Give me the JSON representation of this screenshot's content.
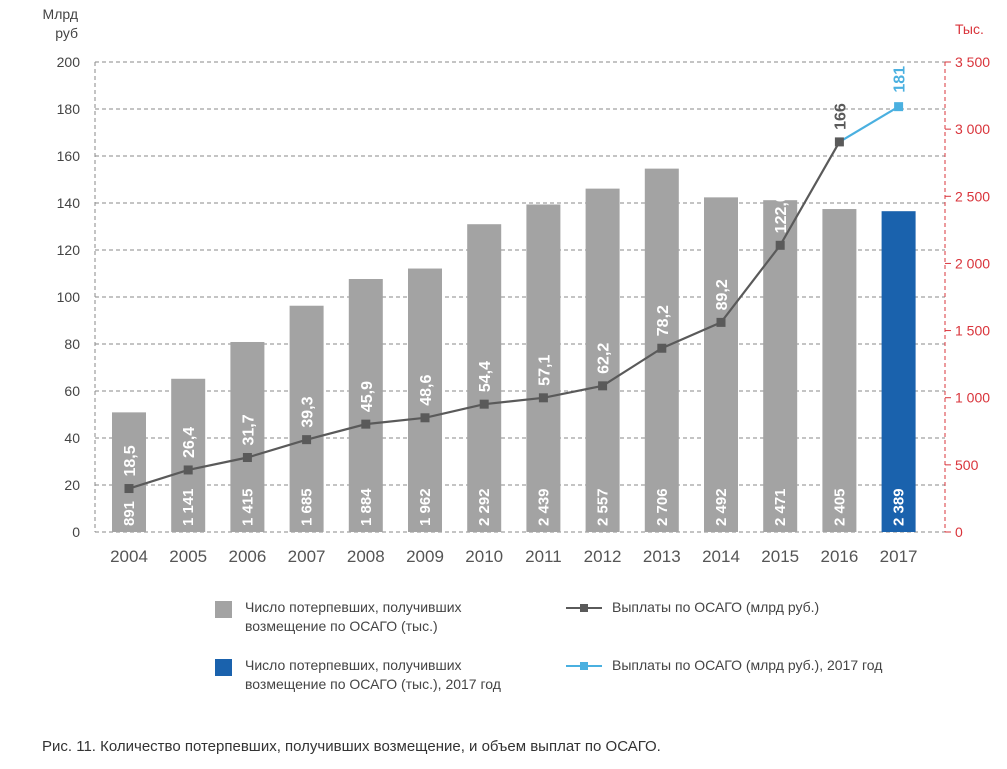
{
  "chart_data": {
    "type": "bar+line",
    "title": "",
    "left_axis_label": [
      "Млрд",
      "руб"
    ],
    "right_axis_label": "Тыс.",
    "categories": [
      "2004",
      "2005",
      "2006",
      "2007",
      "2008",
      "2009",
      "2010",
      "2011",
      "2012",
      "2013",
      "2014",
      "2015",
      "2016",
      "2017"
    ],
    "ylim_left": [
      0,
      200
    ],
    "yticks_left": [
      0,
      20,
      40,
      60,
      80,
      100,
      120,
      140,
      160,
      180,
      200
    ],
    "ylim_right": [
      0,
      3500
    ],
    "yticks_right": [
      0,
      500,
      1000,
      1500,
      2000,
      2500,
      3000,
      3500
    ],
    "yticks_right_labels": [
      "0",
      "500",
      "1 000",
      "1 500",
      "2 000",
      "2 500",
      "3 000",
      "3 500"
    ],
    "grid": true,
    "bars": {
      "axis": "right",
      "values": [
        891,
        1141,
        1415,
        1685,
        1884,
        1962,
        2292,
        2439,
        2557,
        2706,
        2492,
        2471,
        2405,
        2389
      ],
      "labels": [
        "891",
        "1 141",
        "1 415",
        "1 685",
        "1 884",
        "1 962",
        "2 292",
        "2 439",
        "2 557",
        "2 706",
        "2 492",
        "2 471",
        "2 405",
        "2 389"
      ],
      "color": "#a3a3a3",
      "highlight_index": 13,
      "highlight_color": "#1a62ad"
    },
    "line": {
      "axis": "left",
      "values": [
        18.5,
        26.4,
        31.7,
        39.3,
        45.9,
        48.6,
        54.4,
        57.1,
        62.2,
        78.2,
        89.2,
        122.0,
        166
      ],
      "labels": [
        "18,5",
        "26,4",
        "31,7",
        "39,3",
        "45,9",
        "48,6",
        "54,4",
        "57,1",
        "62,2",
        "78,2",
        "89,2",
        "122,0",
        "166"
      ],
      "color": "#5a5a5a"
    },
    "line_2017": {
      "axis": "left",
      "from_index": 12,
      "values": [
        166,
        181
      ],
      "label": "181",
      "color": "#4ab0e0"
    },
    "right_axis_color": "#d9343b",
    "left_axis_color": "#444444"
  },
  "legend": {
    "items": [
      {
        "text": "Число потерпевших, получивших возмещение по ОСАГО (тыс.)",
        "color": "#a3a3a3"
      },
      {
        "text": "Выплаты по ОСАГО (млрд руб.)",
        "color": "#5a5a5a"
      },
      {
        "text": "Число потерпевших, получивших возмещение по ОСАГО (тыс.), 2017 год",
        "color": "#1a62ad"
      },
      {
        "text": "Выплаты по ОСАГО (млрд руб.), 2017 год",
        "color": "#4ab0e0"
      }
    ]
  },
  "caption": "Рис. 11. Количество потерпевших, получивших возмещение, и объем выплат по ОСАГО."
}
